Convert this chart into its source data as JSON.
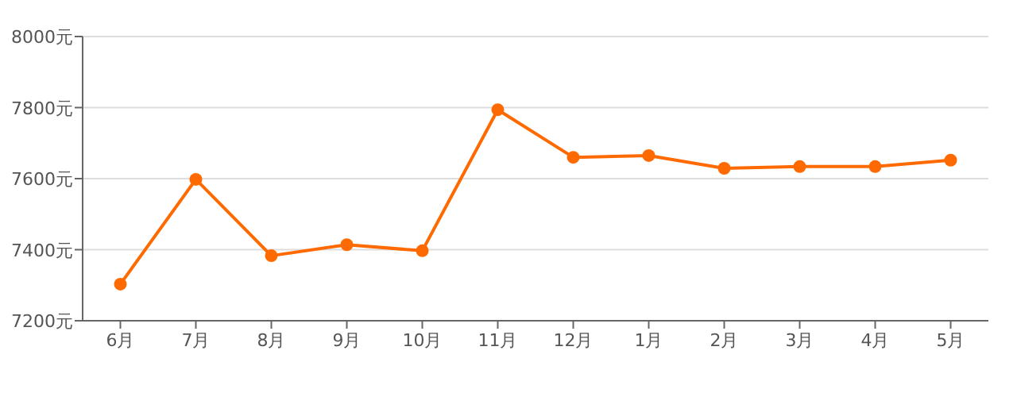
{
  "chart_data": {
    "type": "line",
    "categories": [
      "6月",
      "7月",
      "8月",
      "9月",
      "10月",
      "11月",
      "12月",
      "1月",
      "2月",
      "3月",
      "4月",
      "5月"
    ],
    "series": [
      {
        "color": "#ff6a00",
        "values": [
          7303,
          7598,
          7383,
          7414,
          7397,
          7794,
          7660,
          7665,
          7629,
          7634,
          7634,
          7652
        ]
      }
    ],
    "ylim": [
      7200,
      8000
    ],
    "yticks": [
      {
        "value": 7200,
        "label": "7200元"
      },
      {
        "value": 7400,
        "label": "7400元"
      },
      {
        "value": 7600,
        "label": "7600元"
      },
      {
        "value": 7800,
        "label": "7800元"
      },
      {
        "value": 8000,
        "label": "8000元"
      }
    ],
    "grid": "y",
    "marker": "circle",
    "line_style": "solid"
  }
}
